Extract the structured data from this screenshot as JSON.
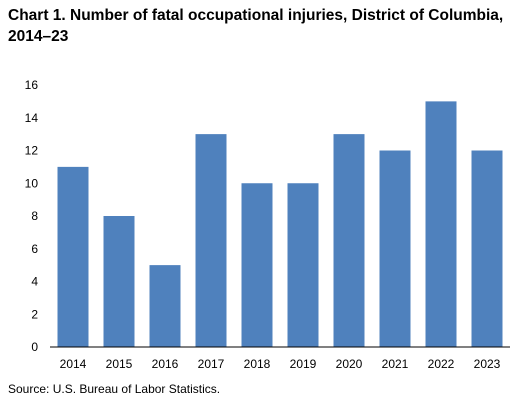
{
  "title": "Chart 1. Number of fatal occupational injuries, District of Columbia, 2014–23",
  "source": "Source: U.S. Bureau of Labor Statistics.",
  "colors": {
    "bar": "#4f81bd",
    "axis": "#000000",
    "background": "#ffffff"
  },
  "chart_data": {
    "type": "bar",
    "title": "Chart 1. Number of fatal occupational injuries, District of Columbia, 2014–23",
    "xlabel": "",
    "ylabel": "",
    "categories": [
      "2014",
      "2015",
      "2016",
      "2017",
      "2018",
      "2019",
      "2020",
      "2021",
      "2022",
      "2023"
    ],
    "values": [
      11,
      8,
      5,
      13,
      10,
      10,
      13,
      12,
      15,
      12
    ],
    "ylim": [
      0,
      16
    ],
    "yticks": [
      0,
      2,
      4,
      6,
      8,
      10,
      12,
      14,
      16
    ],
    "grid": false,
    "legend": "none"
  }
}
